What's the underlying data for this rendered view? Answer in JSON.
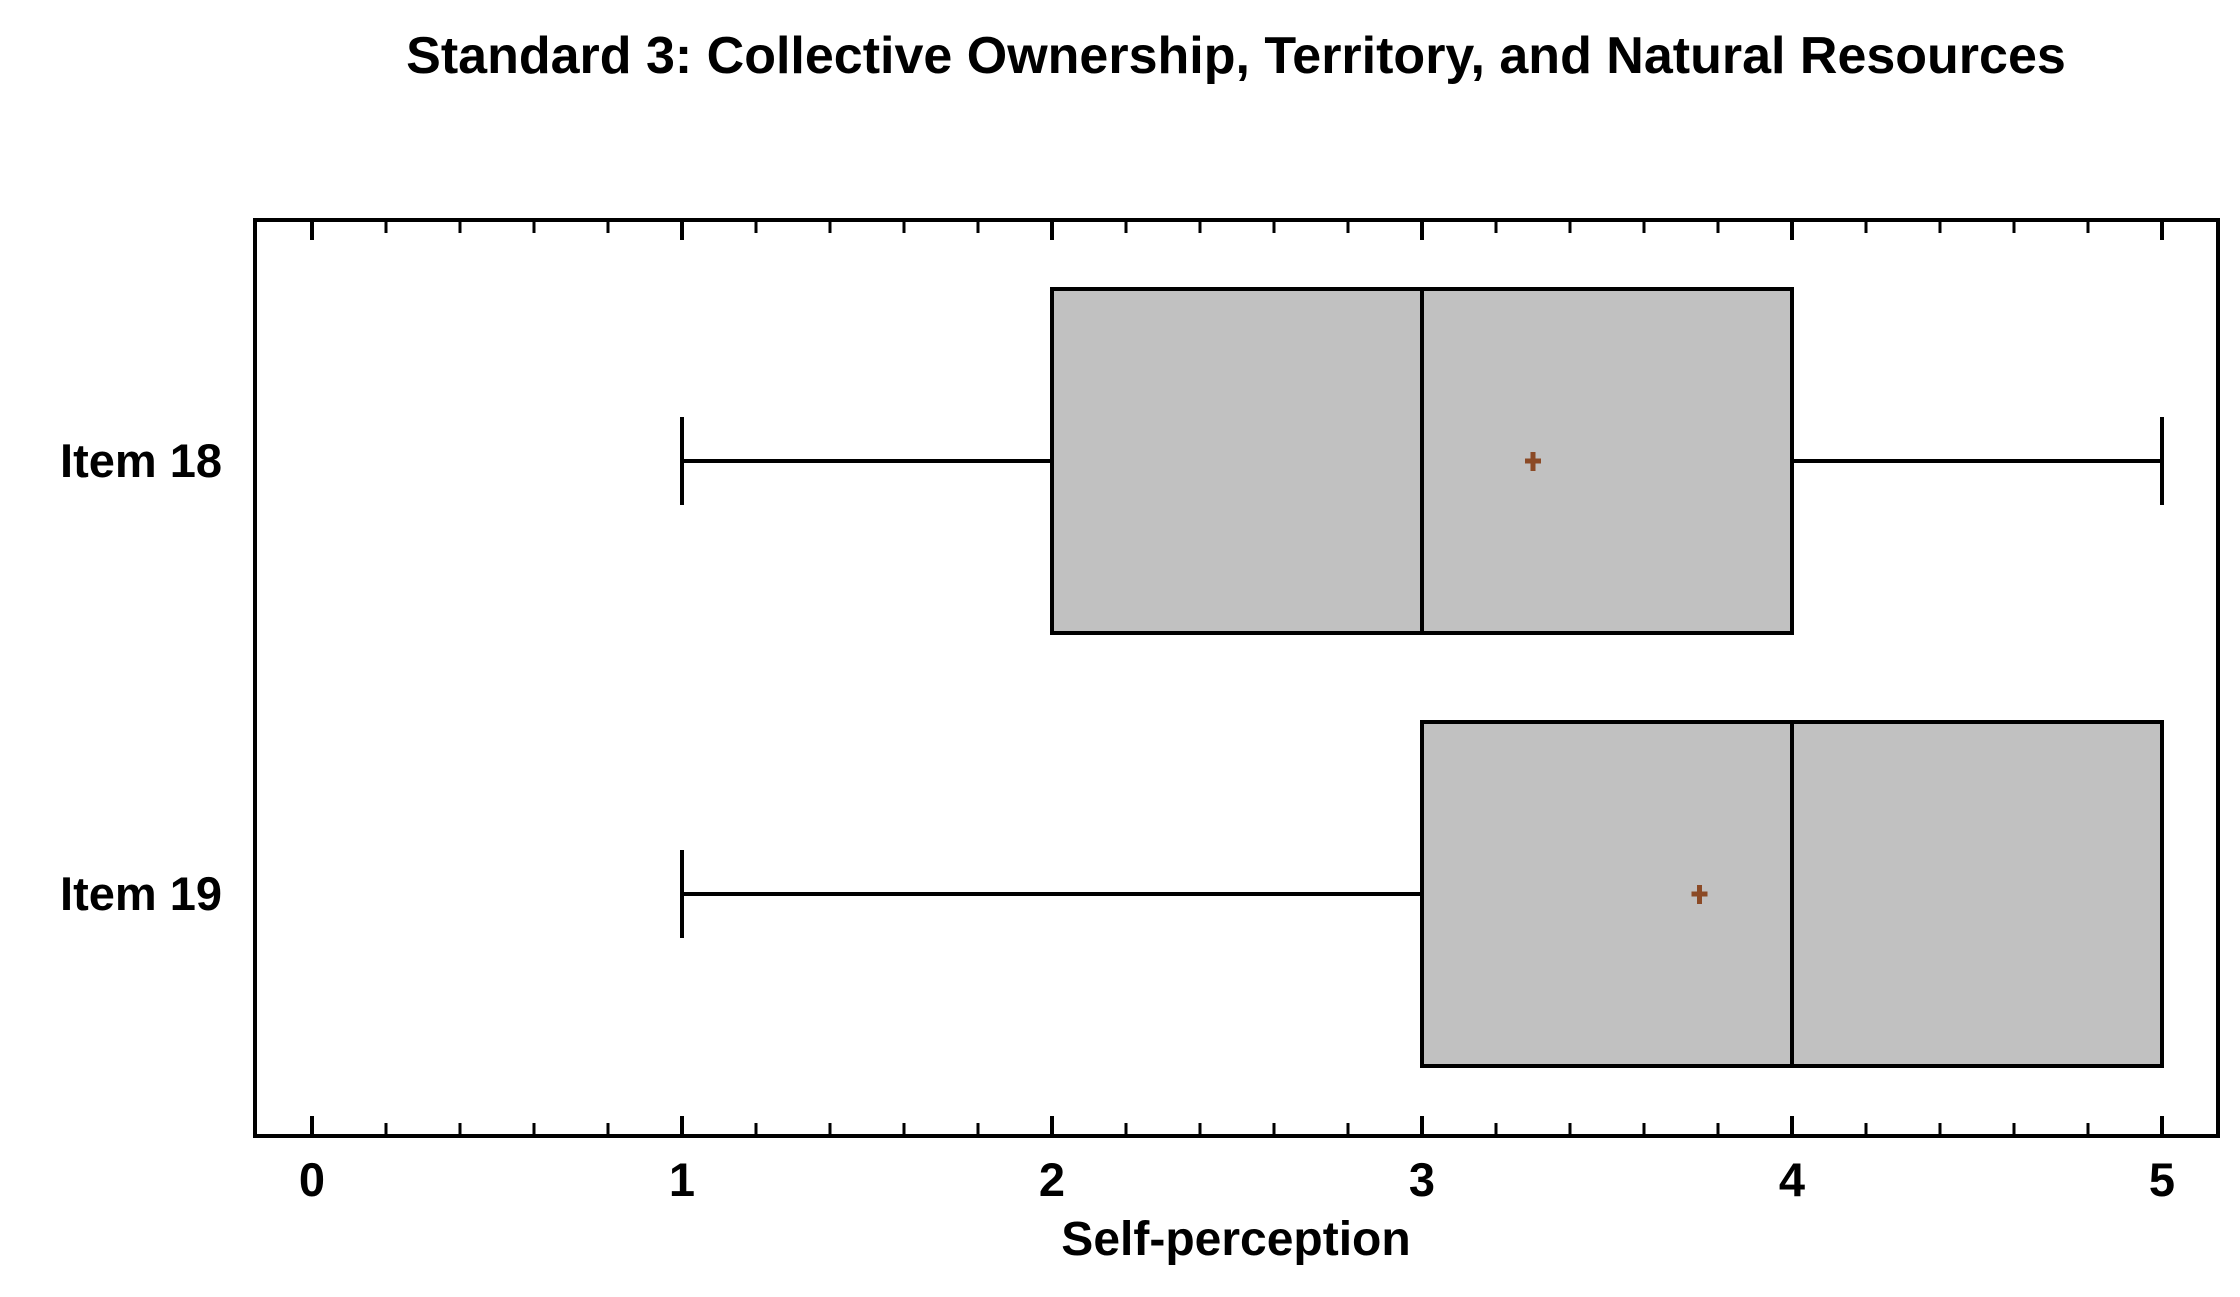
{
  "chart_data": {
    "type": "boxplot",
    "orientation": "horizontal",
    "title": "Standard 3: Collective Ownership, Territory, and Natural Resources",
    "xlabel": "Self-perception",
    "xlim": [
      0,
      5
    ],
    "x_ticks": [
      0,
      1,
      2,
      3,
      4,
      5
    ],
    "x_tick_labels": [
      "0",
      "1",
      "2",
      "3",
      "4",
      "5"
    ],
    "minor_tick_step": 0.2,
    "grid": "off",
    "legend": "none",
    "categories": [
      "Item 18",
      "Item 19"
    ],
    "series": [
      {
        "name": "Item 18",
        "whisker_low": 1,
        "q1": 2,
        "median": 3,
        "q3": 4,
        "whisker_high": 5,
        "mean": 3.3
      },
      {
        "name": "Item 19",
        "whisker_low": 1,
        "q1": 3,
        "median": 4,
        "q3": 5,
        "whisker_high": 5,
        "mean": 3.75
      }
    ],
    "colors": {
      "box_fill": "#C1C1C1",
      "line": "#000000",
      "mean_marker": "#8B4A26",
      "background": "#FFFFFF"
    }
  }
}
